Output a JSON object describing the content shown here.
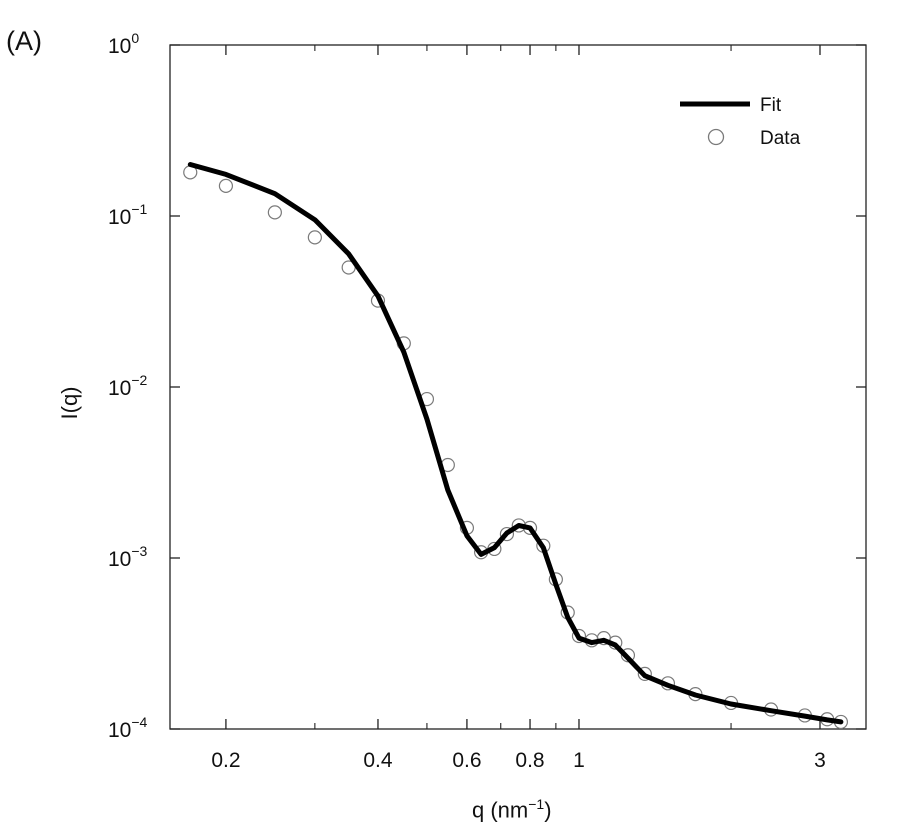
{
  "panel_label": "(A)",
  "chart_data": {
    "type": "line",
    "xlabel": "q (nm",
    "xlabel_sup": "−1",
    "xlabel_end": ")",
    "ylabel": "I(q)",
    "x_scale": "log",
    "y_scale": "log",
    "xlim": [
      0.155,
      3.7
    ],
    "ylim": [
      0.0001,
      1
    ],
    "x_ticks": [
      {
        "value": 0.2,
        "label": "0.2"
      },
      {
        "value": 0.4,
        "label": "0.4"
      },
      {
        "value": 0.6,
        "label": "0.6"
      },
      {
        "value": 0.8,
        "label": "0.8"
      },
      {
        "value": 1,
        "label": "1"
      },
      {
        "value": 3,
        "label": "3"
      }
    ],
    "x_minor_ticks": [
      0.3,
      0.5,
      0.7,
      0.9,
      2
    ],
    "y_ticks": [
      {
        "value": 1,
        "base": "10",
        "exp": "0"
      },
      {
        "value": 0.1,
        "base": "10",
        "exp": "−1"
      },
      {
        "value": 0.01,
        "base": "10",
        "exp": "−2"
      },
      {
        "value": 0.001,
        "base": "10",
        "exp": "−3"
      },
      {
        "value": 0.0001,
        "base": "10",
        "exp": "−4"
      }
    ],
    "grid": false,
    "legend_position": "top-right",
    "series": [
      {
        "name": "Fit",
        "style": "line",
        "color": "#000000",
        "points": [
          [
            0.17,
            0.2
          ],
          [
            0.2,
            0.175
          ],
          [
            0.25,
            0.135
          ],
          [
            0.3,
            0.095
          ],
          [
            0.35,
            0.06
          ],
          [
            0.4,
            0.034
          ],
          [
            0.45,
            0.016
          ],
          [
            0.5,
            0.0065
          ],
          [
            0.55,
            0.0025
          ],
          [
            0.6,
            0.00135
          ],
          [
            0.64,
            0.00105
          ],
          [
            0.68,
            0.00115
          ],
          [
            0.72,
            0.0014
          ],
          [
            0.76,
            0.00155
          ],
          [
            0.8,
            0.0015
          ],
          [
            0.85,
            0.00115
          ],
          [
            0.9,
            0.0007
          ],
          [
            0.95,
            0.00045
          ],
          [
            1.0,
            0.00034
          ],
          [
            1.06,
            0.00032
          ],
          [
            1.12,
            0.00033
          ],
          [
            1.18,
            0.00031
          ],
          [
            1.25,
            0.00026
          ],
          [
            1.35,
            0.000205
          ],
          [
            1.5,
            0.00018
          ],
          [
            1.7,
            0.000158
          ],
          [
            2.0,
            0.00014
          ],
          [
            2.4,
            0.000128
          ],
          [
            2.8,
            0.000119
          ],
          [
            3.1,
            0.000113
          ],
          [
            3.3,
            0.00011
          ]
        ]
      },
      {
        "name": "Data",
        "style": "open-circle",
        "color": "#7a7a7a",
        "points": [
          [
            0.17,
            0.18
          ],
          [
            0.2,
            0.15
          ],
          [
            0.25,
            0.105
          ],
          [
            0.3,
            0.075
          ],
          [
            0.35,
            0.05
          ],
          [
            0.4,
            0.032
          ],
          [
            0.45,
            0.018
          ],
          [
            0.5,
            0.0085
          ],
          [
            0.55,
            0.0035
          ],
          [
            0.6,
            0.0015
          ],
          [
            0.64,
            0.00108
          ],
          [
            0.68,
            0.00113
          ],
          [
            0.72,
            0.00138
          ],
          [
            0.76,
            0.00155
          ],
          [
            0.8,
            0.0015
          ],
          [
            0.85,
            0.00118
          ],
          [
            0.9,
            0.00075
          ],
          [
            0.95,
            0.00048
          ],
          [
            1.0,
            0.00035
          ],
          [
            1.06,
            0.00033
          ],
          [
            1.12,
            0.00034
          ],
          [
            1.18,
            0.00032
          ],
          [
            1.25,
            0.00027
          ],
          [
            1.35,
            0.00021
          ],
          [
            1.5,
            0.000185
          ],
          [
            1.7,
            0.00016
          ],
          [
            2.0,
            0.000142
          ],
          [
            2.4,
            0.00013
          ],
          [
            2.8,
            0.00012
          ],
          [
            3.1,
            0.000114
          ],
          [
            3.3,
            0.00011
          ]
        ]
      }
    ]
  }
}
